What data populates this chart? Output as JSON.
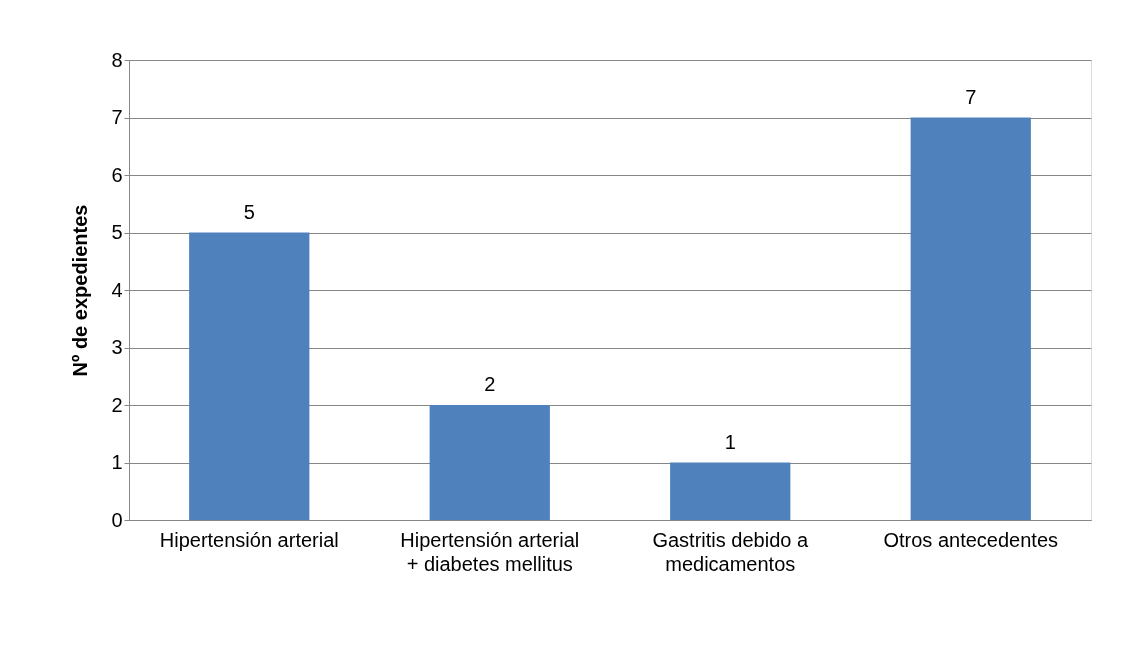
{
  "chart_data": {
    "type": "bar",
    "ylabel": "Nº de expedientes",
    "categories": [
      "Hipertensión arterial",
      "Hipertensión arterial + diabetes mellitus",
      "Gastritis debido a medicamentos",
      "Otros antecedentes"
    ],
    "values": [
      5,
      2,
      1,
      7
    ],
    "color": "#4f81bd",
    "ylim": [
      0,
      8
    ],
    "yticks": [
      0,
      1,
      2,
      3,
      4,
      5,
      6,
      7,
      8
    ],
    "grid": "y",
    "data_labels": true
  }
}
